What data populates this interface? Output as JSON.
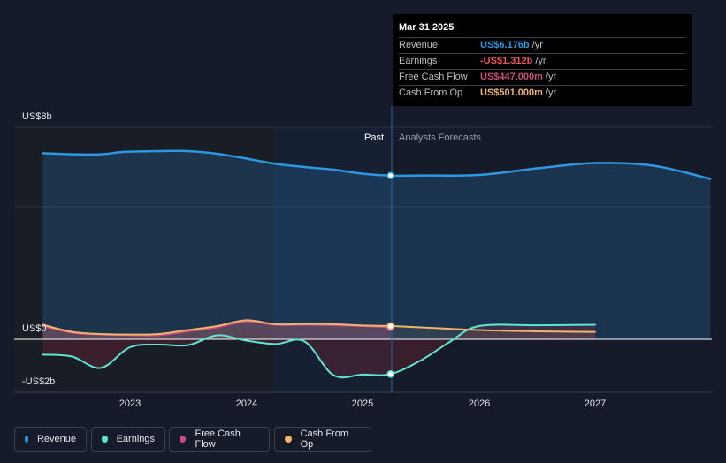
{
  "chart_data": {
    "type": "line",
    "y_axis_labels": [
      "US$8b",
      "US$0",
      "-US$2b"
    ],
    "x_tick_labels": [
      "2023",
      "2024",
      "2025",
      "2026",
      "2027"
    ],
    "ylim": [
      -2,
      8
    ],
    "divider_labels": {
      "past": "Past",
      "forecast": "Analysts Forecasts"
    },
    "series": [
      {
        "name": "Revenue",
        "color": "#2d97e2",
        "points": [
          [
            2022.25,
            7.02
          ],
          [
            2022.5,
            6.98
          ],
          [
            2022.75,
            6.98
          ],
          [
            2022.95,
            7.07
          ],
          [
            2023.25,
            7.1
          ],
          [
            2023.5,
            7.1
          ],
          [
            2023.75,
            7.0
          ],
          [
            2024.0,
            6.82
          ],
          [
            2024.25,
            6.62
          ],
          [
            2024.5,
            6.5
          ],
          [
            2024.75,
            6.4
          ],
          [
            2025.0,
            6.25
          ],
          [
            2025.24,
            6.176
          ],
          [
            2025.5,
            6.18
          ],
          [
            2026.0,
            6.2
          ],
          [
            2026.5,
            6.45
          ],
          [
            2027.0,
            6.65
          ],
          [
            2027.5,
            6.55
          ],
          [
            2027.99,
            6.05
          ]
        ]
      },
      {
        "name": "Earnings",
        "color": "#5ee7cf",
        "points": [
          [
            2022.25,
            -0.58
          ],
          [
            2022.5,
            -0.65
          ],
          [
            2022.75,
            -1.08
          ],
          [
            2023.0,
            -0.3
          ],
          [
            2023.25,
            -0.2
          ],
          [
            2023.5,
            -0.22
          ],
          [
            2023.75,
            0.15
          ],
          [
            2024.0,
            -0.05
          ],
          [
            2024.25,
            -0.18
          ],
          [
            2024.5,
            -0.08
          ],
          [
            2024.75,
            -1.35
          ],
          [
            2025.0,
            -1.33
          ],
          [
            2025.24,
            -1.312
          ],
          [
            2025.5,
            -0.8
          ],
          [
            2025.75,
            -0.1
          ],
          [
            2026.0,
            0.5
          ],
          [
            2026.5,
            0.53
          ],
          [
            2027.0,
            0.55
          ]
        ]
      },
      {
        "name": "Free Cash Flow",
        "color": "#c84b7f",
        "points": [
          [
            2022.25,
            0.5
          ],
          [
            2022.5,
            0.25
          ],
          [
            2022.75,
            0.18
          ],
          [
            2023.0,
            0.16
          ],
          [
            2023.25,
            0.15
          ],
          [
            2023.5,
            0.3
          ],
          [
            2023.75,
            0.45
          ],
          [
            2024.0,
            0.67
          ],
          [
            2024.25,
            0.55
          ],
          [
            2024.5,
            0.55
          ],
          [
            2024.75,
            0.53
          ],
          [
            2025.0,
            0.5
          ],
          [
            2025.24,
            0.447
          ]
        ]
      },
      {
        "name": "Cash From Op",
        "color": "#f1b46a",
        "points": [
          [
            2022.25,
            0.55
          ],
          [
            2022.5,
            0.28
          ],
          [
            2022.75,
            0.2
          ],
          [
            2023.0,
            0.18
          ],
          [
            2023.25,
            0.2
          ],
          [
            2023.5,
            0.35
          ],
          [
            2023.75,
            0.5
          ],
          [
            2024.0,
            0.72
          ],
          [
            2024.25,
            0.57
          ],
          [
            2024.5,
            0.58
          ],
          [
            2024.75,
            0.57
          ],
          [
            2025.0,
            0.52
          ],
          [
            2025.24,
            0.501
          ],
          [
            2025.5,
            0.45
          ],
          [
            2026.0,
            0.35
          ],
          [
            2026.5,
            0.3
          ],
          [
            2027.0,
            0.28
          ]
        ]
      }
    ]
  },
  "tooltip": {
    "date": "Mar 31 2025",
    "rows": [
      {
        "name": "Revenue",
        "value": "US$6.176b",
        "unit": "/yr",
        "color": "#2d97e2"
      },
      {
        "name": "Earnings",
        "value": "-US$1.312b",
        "unit": "/yr",
        "color": "#f0545c"
      },
      {
        "name": "Free Cash Flow",
        "value": "US$447.000m",
        "unit": "/yr",
        "color": "#c84b7f"
      },
      {
        "name": "Cash From Op",
        "value": "US$501.000m",
        "unit": "/yr",
        "color": "#f1b46a"
      }
    ]
  },
  "legend": [
    {
      "label": "Revenue",
      "color": "#2d97e2"
    },
    {
      "label": "Earnings",
      "color": "#5ee7cf"
    },
    {
      "label": "Free Cash Flow",
      "color": "#c84b7f"
    },
    {
      "label": "Cash From Op",
      "color": "#f1b46a"
    }
  ]
}
